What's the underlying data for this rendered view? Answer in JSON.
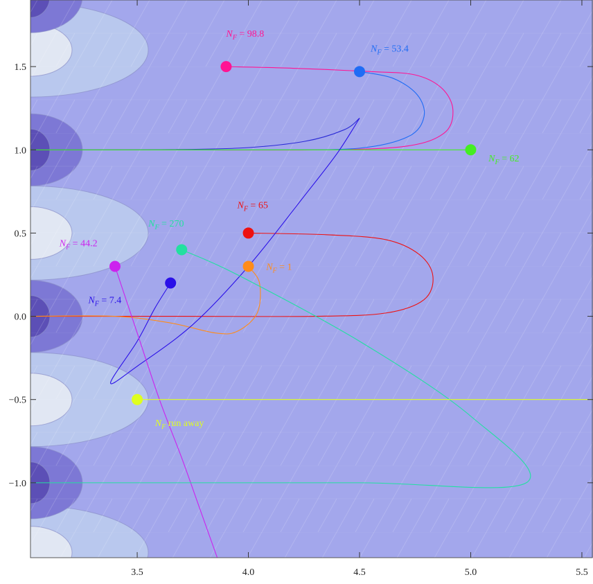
{
  "chart_data": {
    "type": "line",
    "title": "",
    "xlabel": "",
    "ylabel": "",
    "xlim": [
      3.02,
      5.55
    ],
    "ylim": [
      -1.45,
      1.9
    ],
    "x_ticks": [
      {
        "value": 3.5,
        "label": "3.5"
      },
      {
        "value": 4.0,
        "label": "4.0"
      },
      {
        "value": 4.5,
        "label": "4.5"
      },
      {
        "value": 5.0,
        "label": "5.0"
      },
      {
        "value": 5.5,
        "label": "5.5"
      }
    ],
    "y_ticks": [
      {
        "value": 1.5,
        "label": "1.5"
      },
      {
        "value": 1.0,
        "label": "1.0"
      },
      {
        "value": 0.5,
        "label": "0.5"
      },
      {
        "value": 0.0,
        "label": "0.0"
      },
      {
        "value": -0.5,
        "label": "−0.5"
      },
      {
        "value": -1.0,
        "label": "−1.0"
      }
    ],
    "background_color": "#a3a7ec",
    "contour_colors": [
      "#5c4fb6",
      "#7d78d5",
      "#b9c8ee",
      "#e1e7f3"
    ],
    "trajectories": [
      {
        "color": "#ff1493",
        "start": [
          3.9,
          1.5
        ],
        "points": [
          [
            3.9,
            1.5
          ],
          [
            4.2,
            1.49
          ],
          [
            4.55,
            1.47
          ],
          [
            4.75,
            1.45
          ],
          [
            4.87,
            1.37
          ],
          [
            4.92,
            1.24
          ],
          [
            4.88,
            1.1
          ],
          [
            4.7,
            1.02
          ],
          [
            4.3,
            1.0
          ],
          [
            3.6,
            1.0
          ],
          [
            3.02,
            1.0
          ]
        ],
        "label": {
          "symbol": "N",
          "sub": "F",
          "text": " = 98.8",
          "at": [
            3.9,
            1.68
          ]
        }
      },
      {
        "color": "#1f6cf5",
        "start": [
          4.5,
          1.47
        ],
        "points": [
          [
            4.5,
            1.47
          ],
          [
            4.65,
            1.43
          ],
          [
            4.76,
            1.33
          ],
          [
            4.79,
            1.2
          ],
          [
            4.72,
            1.08
          ],
          [
            4.5,
            1.01
          ],
          [
            4.1,
            1.0
          ],
          [
            3.5,
            1.0
          ],
          [
            3.02,
            1.0
          ]
        ],
        "label": {
          "symbol": "N",
          "sub": "F",
          "text": " = 53.4",
          "at": [
            4.55,
            1.59
          ]
        }
      },
      {
        "color": "#2b2bd6",
        "start": [
          4.5,
          1.19
        ],
        "points": [
          [
            4.5,
            1.19
          ],
          [
            4.43,
            1.12
          ],
          [
            4.25,
            1.05
          ],
          [
            3.95,
            1.01
          ],
          [
            3.5,
            1.0
          ],
          [
            3.02,
            1.0
          ]
        ],
        "label": null
      },
      {
        "color": "#44ee22",
        "start": [
          5.0,
          1.0
        ],
        "points": [
          [
            5.0,
            1.0
          ],
          [
            4.5,
            1.0
          ],
          [
            4.0,
            1.0
          ],
          [
            3.5,
            1.0
          ],
          [
            3.02,
            1.0
          ]
        ],
        "label": {
          "symbol": "N",
          "sub": "F",
          "text": " = 62",
          "at": [
            5.08,
            0.93
          ]
        }
      },
      {
        "color": "#ee1111",
        "start": [
          4.0,
          0.5
        ],
        "points": [
          [
            4.0,
            0.5
          ],
          [
            4.35,
            0.49
          ],
          [
            4.62,
            0.46
          ],
          [
            4.77,
            0.37
          ],
          [
            4.83,
            0.24
          ],
          [
            4.79,
            0.1
          ],
          [
            4.62,
            0.02
          ],
          [
            4.3,
            0.0
          ],
          [
            3.7,
            0.0
          ],
          [
            3.02,
            0.0
          ]
        ],
        "label": {
          "symbol": "N",
          "sub": "F",
          "text": " = 65",
          "at": [
            3.95,
            0.65
          ]
        }
      },
      {
        "color": "#ff8c1a",
        "start": [
          4.0,
          0.3
        ],
        "points": [
          [
            4.0,
            0.3
          ],
          [
            4.05,
            0.2
          ],
          [
            4.04,
            0.02
          ],
          [
            3.95,
            -0.09
          ],
          [
            3.85,
            -0.1
          ],
          [
            3.65,
            -0.04
          ],
          [
            3.4,
            0.0
          ],
          [
            3.02,
            0.0
          ]
        ],
        "label": {
          "symbol": "N",
          "sub": "F",
          "text": " = 1",
          "at": [
            4.08,
            0.28
          ]
        }
      },
      {
        "color": "#2a10e8",
        "start": [
          3.65,
          0.2
        ],
        "points": [
          [
            3.65,
            0.2
          ],
          [
            3.58,
            0.05
          ],
          [
            3.5,
            -0.15
          ],
          [
            3.38,
            -0.4
          ],
          [
            3.5,
            -0.3
          ],
          [
            3.75,
            -0.05
          ],
          [
            4.0,
            0.3
          ],
          [
            4.25,
            0.72
          ],
          [
            4.4,
            0.98
          ],
          [
            4.5,
            1.19
          ]
        ],
        "label": {
          "symbol": "N",
          "sub": "F",
          "text": " = 7.4",
          "at": [
            3.28,
            0.08
          ]
        }
      },
      {
        "color": "#cc22ee",
        "start": [
          3.4,
          0.3
        ],
        "points": [
          [
            3.4,
            0.3
          ],
          [
            3.5,
            -0.1
          ],
          [
            3.6,
            -0.5
          ],
          [
            3.7,
            -0.85
          ],
          [
            3.78,
            -1.15
          ],
          [
            3.86,
            -1.45
          ]
        ],
        "label": {
          "symbol": "N",
          "sub": "F",
          "text": " = 44.2",
          "at": [
            3.15,
            0.42
          ]
        }
      },
      {
        "color": "#22e0a0",
        "start": [
          3.7,
          0.4
        ],
        "points": [
          [
            3.7,
            0.4
          ],
          [
            3.95,
            0.25
          ],
          [
            4.5,
            -0.15
          ],
          [
            5.0,
            -0.6
          ],
          [
            5.25,
            -1.0
          ],
          [
            4.5,
            -1.0
          ],
          [
            3.5,
            -1.0
          ],
          [
            3.02,
            -1.0
          ]
        ],
        "label": {
          "symbol": "N",
          "sub": "F",
          "text": " = 270",
          "at": [
            3.55,
            0.54
          ]
        }
      },
      {
        "color": "#dfff1f",
        "start": [
          3.5,
          -0.5
        ],
        "points": [
          [
            3.5,
            -0.5
          ],
          [
            4.0,
            -0.5
          ],
          [
            5.0,
            -0.5
          ],
          [
            5.55,
            -0.5
          ]
        ],
        "label": {
          "symbol": "N",
          "sub": "F",
          "text": " run away",
          "at": [
            3.58,
            -0.66
          ]
        }
      }
    ]
  }
}
